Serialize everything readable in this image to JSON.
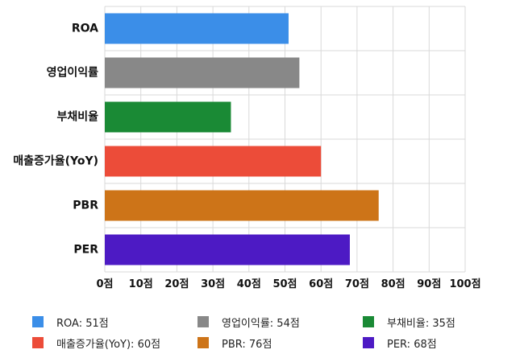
{
  "chart_data": {
    "type": "bar",
    "orientation": "horizontal",
    "categories": [
      "ROA",
      "영업이익률",
      "부채비율",
      "매출증가율(YoY)",
      "PBR",
      "PER"
    ],
    "values": [
      51,
      54,
      35,
      60,
      76,
      68
    ],
    "colors": [
      "#3b8ee8",
      "#888888",
      "#1a8a35",
      "#ec4c39",
      "#cd7418",
      "#4d1ac4"
    ],
    "xlim": [
      0,
      100
    ],
    "x_ticks": [
      0,
      10,
      20,
      30,
      40,
      50,
      60,
      70,
      80,
      90,
      100
    ],
    "x_tick_labels": [
      "0점",
      "10점",
      "20점",
      "30점",
      "40점",
      "50점",
      "60점",
      "70점",
      "80점",
      "90점",
      "100점"
    ],
    "grid": true,
    "legend_position": "bottom",
    "legend": [
      "ROA: 51점",
      "영업이익률: 54점",
      "부채비율: 35점",
      "매출증가율(YoY): 60점",
      "PBR: 76점",
      "PER: 68점"
    ]
  }
}
